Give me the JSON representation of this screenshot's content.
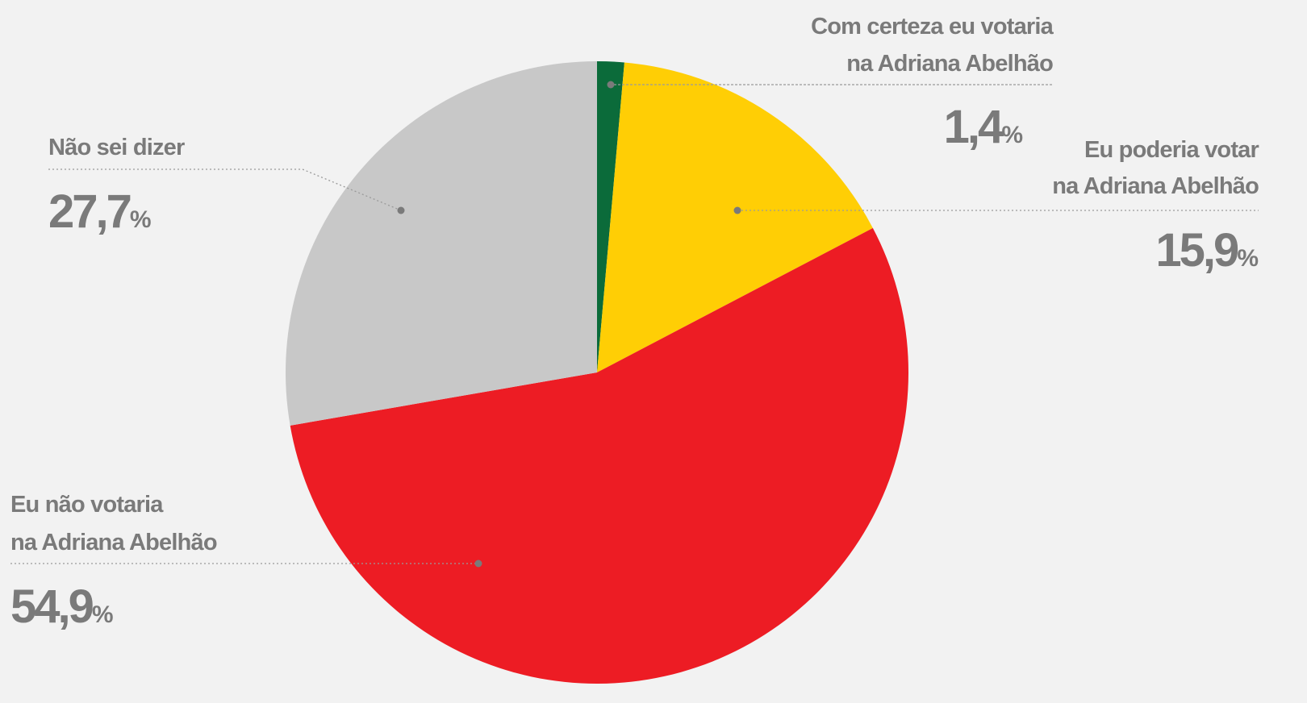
{
  "chart_data": {
    "type": "pie",
    "categories": [
      [
        "Com certeza eu votaria",
        "na Adriana Abelhão"
      ],
      [
        "Eu poderia votar",
        "na Adriana Abelhão"
      ],
      [
        "Eu não votaria",
        "na Adriana Abelhão"
      ],
      [
        "Não sei dizer"
      ]
    ],
    "values": [
      1.4,
      15.9,
      54.9,
      27.7
    ],
    "value_labels": [
      "1,4%",
      "15,9%",
      "54,9%",
      "27,7%"
    ],
    "colors": [
      "#0b6b3a",
      "#ffce05",
      "#ed1c24",
      "#c8c8c8"
    ],
    "start_angle": 90,
    "direction": "clockwise"
  }
}
